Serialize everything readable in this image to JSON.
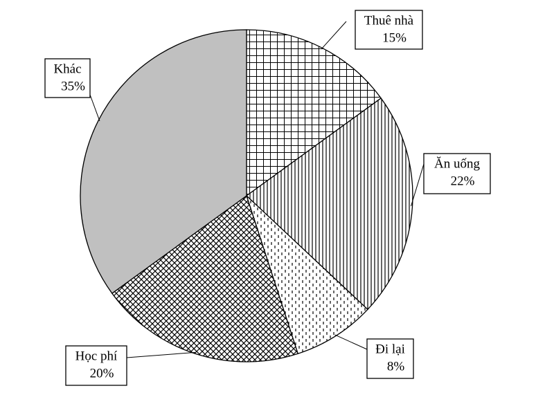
{
  "chart_data": {
    "type": "pie",
    "categories": [
      "Thuê nhà",
      "Ăn uống",
      "Đi lại",
      "Học phí",
      "Khác"
    ],
    "values": [
      15,
      22,
      8,
      20,
      35
    ],
    "value_labels": [
      "15%",
      "22%",
      "8%",
      "20%",
      "35%"
    ],
    "colors": [
      "#ffffff",
      "#ffffff",
      "#ffffff",
      "#ffffff",
      "#c0c0c0"
    ]
  }
}
